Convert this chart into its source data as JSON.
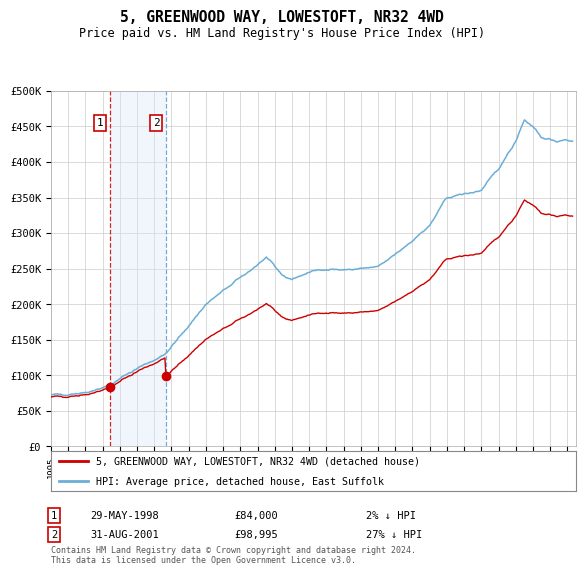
{
  "title": "5, GREENWOOD WAY, LOWESTOFT, NR32 4WD",
  "subtitle": "Price paid vs. HM Land Registry's House Price Index (HPI)",
  "legend_line1": "5, GREENWOOD WAY, LOWESTOFT, NR32 4WD (detached house)",
  "legend_line2": "HPI: Average price, detached house, East Suffolk",
  "transaction1": {
    "label": "1",
    "date": "29-MAY-1998",
    "price": 84000,
    "hpi_rel": "2% ↓ HPI",
    "date_num": 1998.41
  },
  "transaction2": {
    "label": "2",
    "date": "31-AUG-2001",
    "price": 98995,
    "hpi_rel": "27% ↓ HPI",
    "date_num": 2001.67
  },
  "footnote": "Contains HM Land Registry data © Crown copyright and database right 2024.\nThis data is licensed under the Open Government Licence v3.0.",
  "hpi_color": "#6baed6",
  "price_color": "#cc0000",
  "shading_color": "#d6e8f5",
  "vline1_color": "#cc0000",
  "vline2_color": "#5b9bd5",
  "ylim": [
    0,
    500000
  ],
  "yticks": [
    0,
    50000,
    100000,
    150000,
    200000,
    250000,
    300000,
    350000,
    400000,
    450000,
    500000
  ],
  "xstart": 1995.0,
  "xend": 2025.5,
  "background_color": "#ffffff",
  "grid_color": "#cccccc"
}
